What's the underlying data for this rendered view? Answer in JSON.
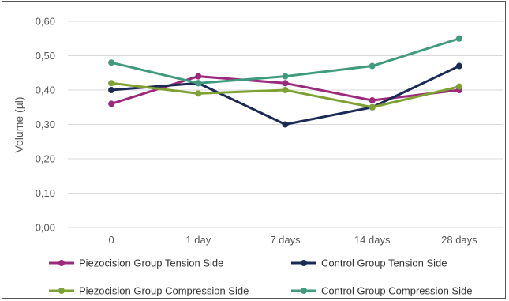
{
  "chart_data": {
    "type": "line",
    "title": "",
    "xlabel": "",
    "ylabel": "Volume (µl)",
    "categories": [
      "0",
      "1 day",
      "7 days",
      "14 days",
      "28 days"
    ],
    "y_ticks": [
      "0,00",
      "0,10",
      "0,20",
      "0,30",
      "0,40",
      "0,50",
      "0,60"
    ],
    "ylim": [
      0,
      0.6
    ],
    "grid": "horizontal",
    "legend_position": "bottom",
    "series": [
      {
        "name": "Piezocision Group Tension Side",
        "color": "#9b2a7d",
        "values": [
          0.36,
          0.44,
          0.42,
          0.37,
          0.4
        ]
      },
      {
        "name": "Control Group Tension Side",
        "color": "#1b2a55",
        "values": [
          0.4,
          0.42,
          0.3,
          0.35,
          0.47
        ]
      },
      {
        "name": "Piezocision Group Compression Side",
        "color": "#7fa133",
        "values": [
          0.42,
          0.39,
          0.4,
          0.35,
          0.41
        ]
      },
      {
        "name": "Control Group Compression Side",
        "color": "#3f9a7e",
        "values": [
          0.48,
          0.42,
          0.44,
          0.47,
          0.55
        ]
      }
    ]
  }
}
